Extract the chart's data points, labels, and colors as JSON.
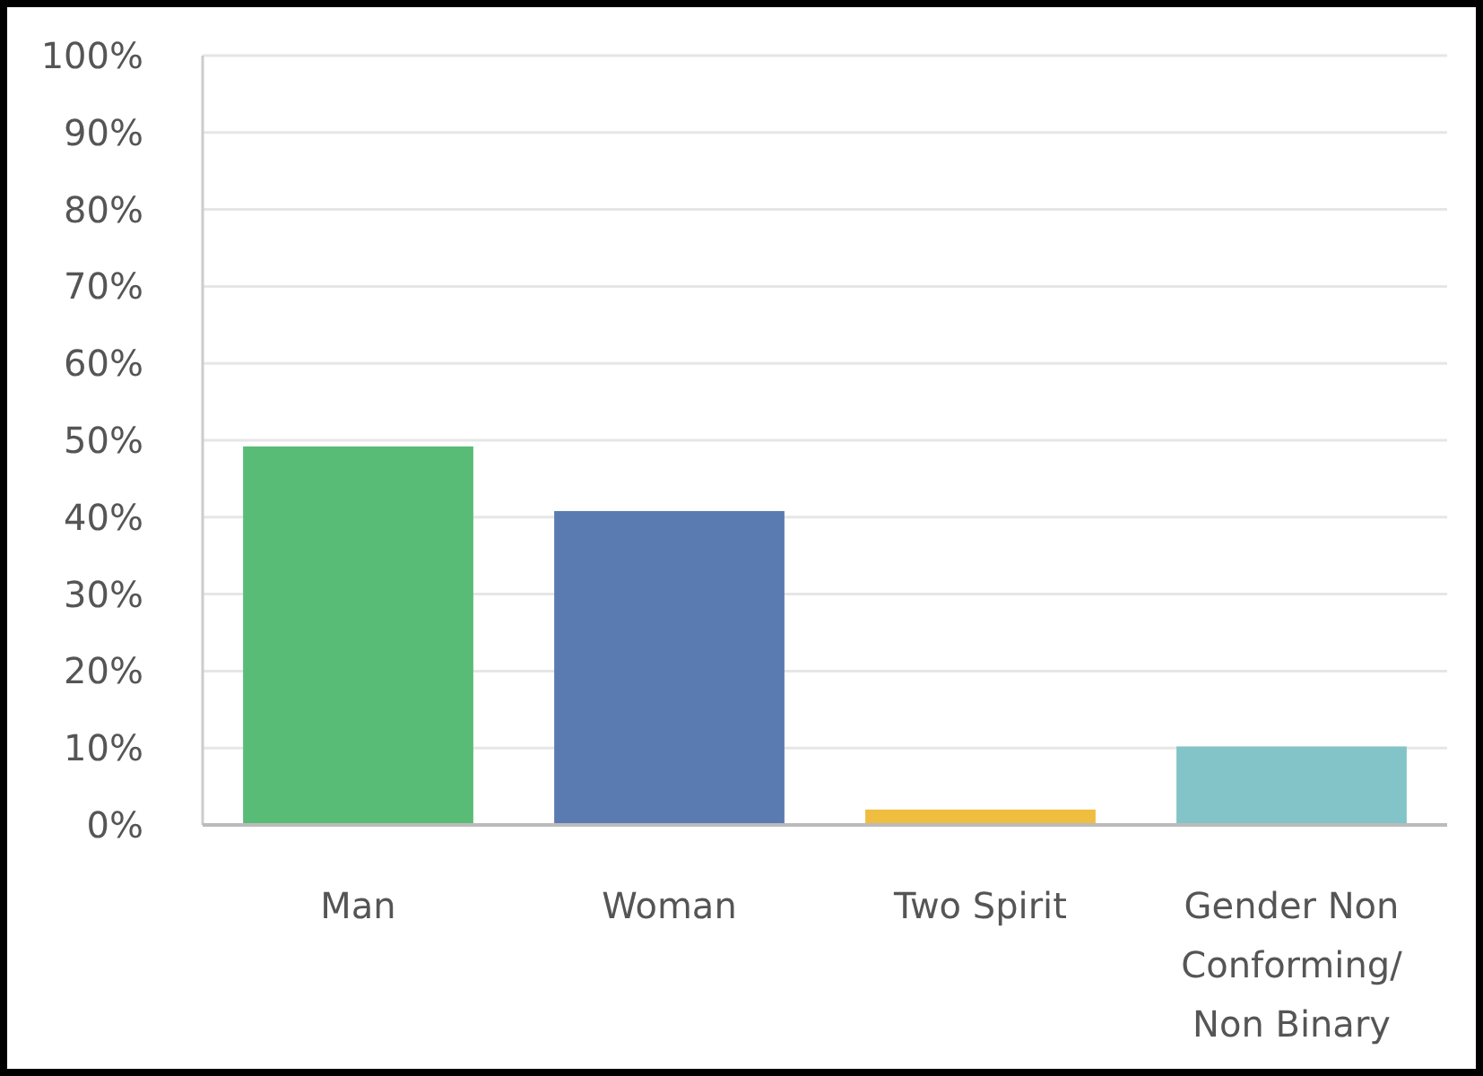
{
  "chart_data": {
    "type": "bar",
    "categories": [
      "Man",
      "Woman",
      "Two Spirit",
      "Gender Non Conforming/ Non Binary"
    ],
    "values": [
      49.2,
      40.8,
      2.0,
      10.2
    ],
    "colors": [
      "#59bc76",
      "#5a7bb1",
      "#efbd40",
      "#82c4c8"
    ],
    "ylim": [
      0,
      100
    ],
    "yticks": [
      {
        "value": 0,
        "label": "0%"
      },
      {
        "value": 10,
        "label": "10%"
      },
      {
        "value": 20,
        "label": "20%"
      },
      {
        "value": 30,
        "label": "30%"
      },
      {
        "value": 40,
        "label": "40%"
      },
      {
        "value": 50,
        "label": "50%"
      },
      {
        "value": 60,
        "label": "60%"
      },
      {
        "value": 70,
        "label": "70%"
      },
      {
        "value": 80,
        "label": "80%"
      },
      {
        "value": 90,
        "label": "90%"
      },
      {
        "value": 100,
        "label": "100%"
      }
    ],
    "grid": "y"
  }
}
